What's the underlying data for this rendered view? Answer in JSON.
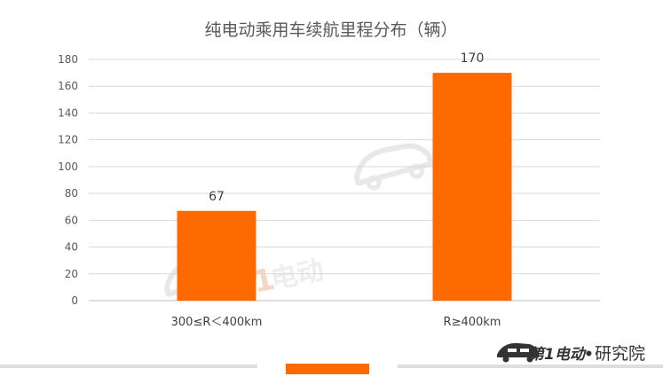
{
  "chart_data": {
    "type": "bar",
    "title": "纯电动乘用车续航里程分布（辆）",
    "categories": [
      "300≤R＜400km",
      "R≥400km"
    ],
    "values": [
      67,
      170
    ],
    "value_labels": [
      "67",
      "170"
    ],
    "ylim": [
      0,
      180
    ],
    "yticks": [
      "0",
      "20",
      "40",
      "60",
      "80",
      "100",
      "120",
      "140",
      "160",
      "180"
    ],
    "xlabel": "",
    "ylabel": "",
    "grid": true,
    "legend": "none"
  },
  "brand": {
    "logo_text": "第1电动",
    "dot": "•",
    "suffix": "研究院"
  },
  "colors": {
    "bar": "#ff6a00",
    "grid": "#d9d9d9",
    "axis": "#bfbfbf",
    "watermark": "#e8e8e8"
  }
}
